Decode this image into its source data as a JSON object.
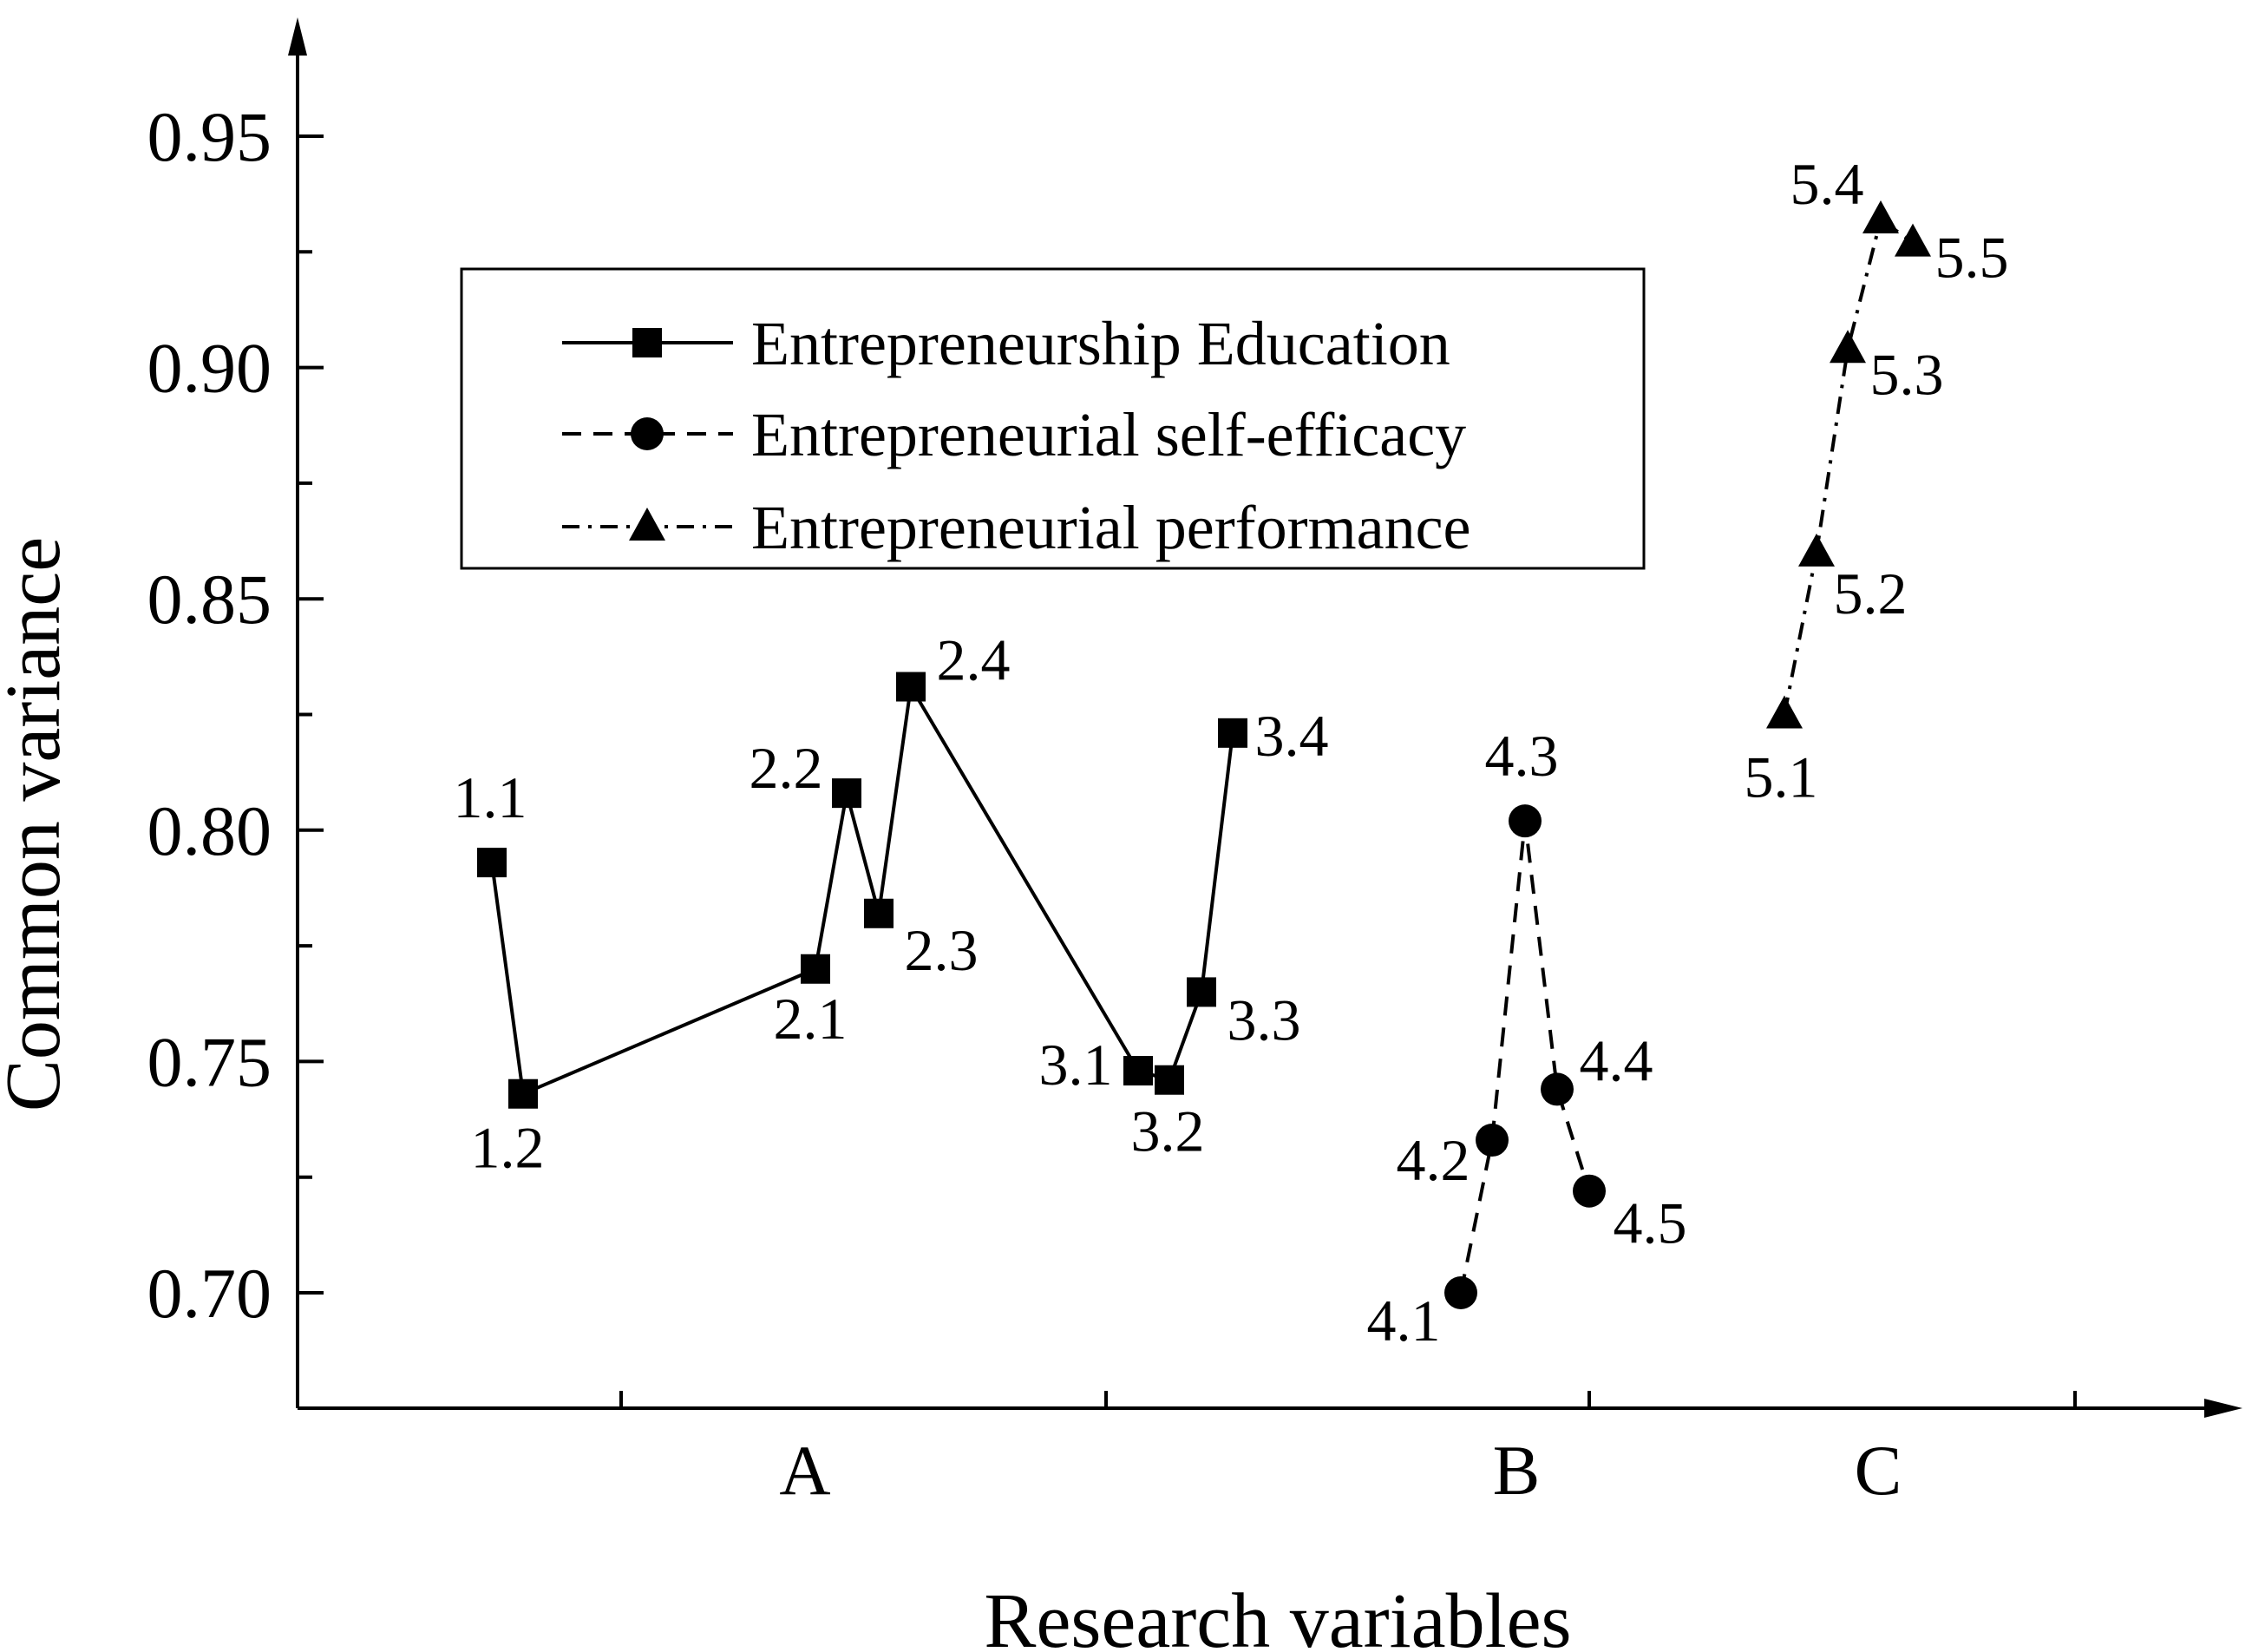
{
  "chart_data": {
    "type": "line",
    "xlabel": "Research variables",
    "ylabel": "Common variance",
    "ylim": [
      0.675,
      0.98
    ],
    "yticks": [
      "0.70",
      "0.75",
      "0.80",
      "0.85",
      "0.90",
      "0.95"
    ],
    "y_minor_ticks": [
      0.725,
      0.775,
      0.825,
      0.875,
      0.925
    ],
    "categories": [
      "A",
      "B",
      "C"
    ],
    "legend_position": "upper-left",
    "grid": false,
    "series": [
      {
        "name": "Entrepreneurship Education",
        "marker": "square",
        "line_style": "solid",
        "points": [
          {
            "label": "1.1",
            "y": 0.793
          },
          {
            "label": "1.2",
            "y": 0.743
          },
          {
            "label": "2.1",
            "y": 0.77
          },
          {
            "label": "2.2",
            "y": 0.808
          },
          {
            "label": "2.3",
            "y": 0.782
          },
          {
            "label": "2.4",
            "y": 0.831
          },
          {
            "label": "3.1",
            "y": 0.748
          },
          {
            "label": "3.2",
            "y": 0.746
          },
          {
            "label": "3.3",
            "y": 0.765
          },
          {
            "label": "3.4",
            "y": 0.821
          }
        ]
      },
      {
        "name": "Entrepreneurial self-efficacy",
        "marker": "circle",
        "line_style": "dashed",
        "points": [
          {
            "label": "4.1",
            "y": 0.7
          },
          {
            "label": "4.2",
            "y": 0.733
          },
          {
            "label": "4.3",
            "y": 0.802
          },
          {
            "label": "4.4",
            "y": 0.744
          },
          {
            "label": "4.5",
            "y": 0.722
          }
        ]
      },
      {
        "name": "Entrepreneurial performance",
        "marker": "triangle",
        "line_style": "dash-dot",
        "points": [
          {
            "label": "5.1",
            "y": 0.825
          },
          {
            "label": "5.2",
            "y": 0.86
          },
          {
            "label": "5.3",
            "y": 0.904
          },
          {
            "label": "5.4",
            "y": 0.932
          },
          {
            "label": "5.5",
            "y": 0.927
          }
        ]
      }
    ]
  }
}
